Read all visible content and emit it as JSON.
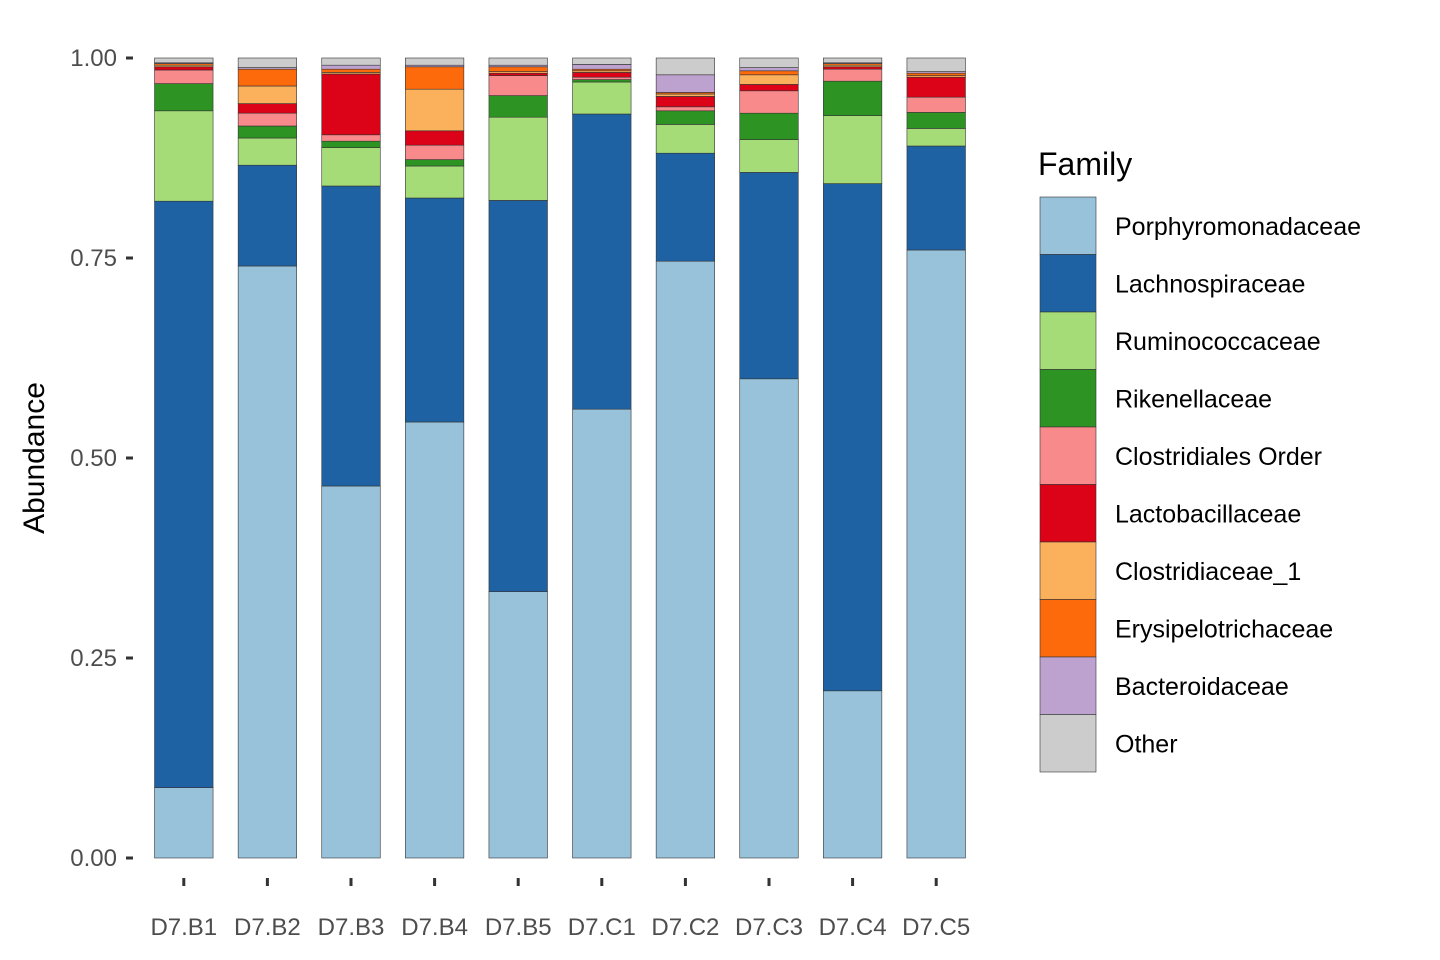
{
  "chart_data": {
    "type": "bar",
    "stacked": true,
    "ylabel": "Abundance",
    "xlabel": "",
    "ylim": [
      0,
      1
    ],
    "yticks": [
      "0.00",
      "0.25",
      "0.50",
      "0.75",
      "1.00"
    ],
    "grid": false,
    "legend": {
      "title": "Family",
      "placement": "right"
    },
    "categories": [
      "D7.B1",
      "D7.B2",
      "D7.B3",
      "D7.B4",
      "D7.B5",
      "D7.C1",
      "D7.C2",
      "D7.C3",
      "D7.C4",
      "D7.C5"
    ],
    "series": [
      {
        "name": "Porphyromonadaceae",
        "color": "#97C2DA",
        "values": [
          0.088,
          0.74,
          0.465,
          0.545,
          0.333,
          0.561,
          0.746,
          0.599,
          0.209,
          0.76
        ]
      },
      {
        "name": "Lachnospiraceae",
        "color": "#1E62A4",
        "values": [
          0.733,
          0.126,
          0.375,
          0.28,
          0.489,
          0.369,
          0.135,
          0.258,
          0.634,
          0.13
        ]
      },
      {
        "name": "Ruminococcaceae",
        "color": "#A6DC78",
        "values": [
          0.113,
          0.034,
          0.048,
          0.04,
          0.104,
          0.04,
          0.036,
          0.041,
          0.085,
          0.022
        ]
      },
      {
        "name": "Rikenellaceae",
        "color": "#2D9423",
        "values": [
          0.034,
          0.015,
          0.008,
          0.008,
          0.027,
          0.003,
          0.017,
          0.033,
          0.043,
          0.02
        ]
      },
      {
        "name": "Clostridiales Order",
        "color": "#F98A8B",
        "values": [
          0.017,
          0.016,
          0.008,
          0.018,
          0.025,
          0.003,
          0.005,
          0.028,
          0.015,
          0.019
        ]
      },
      {
        "name": "Lactobacillaceae",
        "color": "#DC0217",
        "values": [
          0.004,
          0.012,
          0.076,
          0.018,
          0.003,
          0.006,
          0.013,
          0.008,
          0.003,
          0.025
        ]
      },
      {
        "name": "Clostridiaceae_1",
        "color": "#FBB05C",
        "values": [
          0.002,
          0.022,
          0.002,
          0.052,
          0.002,
          0.002,
          0.003,
          0.012,
          0.002,
          0.002
        ]
      },
      {
        "name": "Erysipelotrichaceae",
        "color": "#FD6A0C",
        "values": [
          0.002,
          0.021,
          0.004,
          0.028,
          0.006,
          0.002,
          0.002,
          0.005,
          0.002,
          0.003
        ]
      },
      {
        "name": "Bacteroidaceae",
        "color": "#BDA1CF",
        "values": [
          0.001,
          0.002,
          0.005,
          0.002,
          0.002,
          0.006,
          0.022,
          0.004,
          0.001,
          0.002
        ]
      },
      {
        "name": "Other",
        "color": "#CCCCCC",
        "values": [
          0.006,
          0.012,
          0.009,
          0.009,
          0.009,
          0.008,
          0.021,
          0.012,
          0.006,
          0.017
        ]
      }
    ]
  }
}
